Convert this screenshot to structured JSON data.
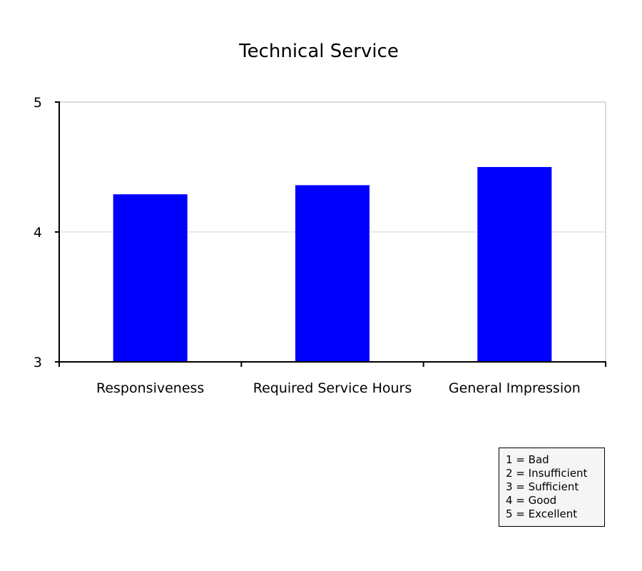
{
  "chart_data": {
    "type": "bar",
    "title": "Technical Service",
    "categories": [
      "Responsiveness",
      "Required Service Hours",
      "General Impression"
    ],
    "values": [
      4.29,
      4.36,
      4.5
    ],
    "xlabel": "",
    "ylabel": "",
    "ylim": [
      3,
      5
    ],
    "yticks": [
      "3",
      "4",
      "5"
    ],
    "grid": true,
    "bar_color": "#0000ff",
    "legend_placement": "bottom-right"
  },
  "legend": {
    "items": [
      "1 = Bad",
      "2 = Insufficient",
      "3 = Sufficient",
      "4 = Good",
      "5 = Excellent"
    ]
  }
}
